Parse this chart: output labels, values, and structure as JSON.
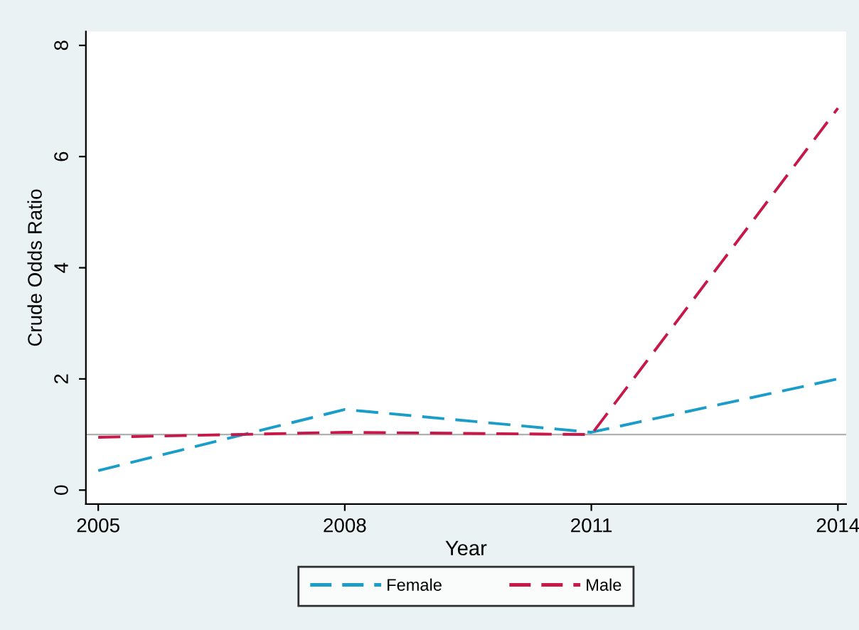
{
  "chart_data": {
    "type": "line",
    "xlabel": "Year",
    "ylabel": "Crude Odds Ratio",
    "x": [
      2005,
      2008,
      2011,
      2014
    ],
    "series": [
      {
        "name": "Female",
        "color": "#1a9dc9",
        "values": [
          0.35,
          1.45,
          1.04,
          2.0
        ]
      },
      {
        "name": "Male",
        "color": "#c8184a",
        "values": [
          0.95,
          1.04,
          1.0,
          6.87
        ]
      }
    ],
    "xlim": [
      2004.85,
      2014.1
    ],
    "ylim": [
      -0.25,
      8.25
    ],
    "xticks": [
      2005,
      2008,
      2011,
      2014
    ],
    "yticks": [
      0,
      2,
      4,
      6,
      8
    ],
    "ref_lines": [
      {
        "axis": "y",
        "value": 1,
        "color": "#b0b0b0",
        "line_style": "solid"
      }
    ],
    "grid": false,
    "legend": "bottom",
    "marker": "none",
    "line_style": "dashed"
  }
}
